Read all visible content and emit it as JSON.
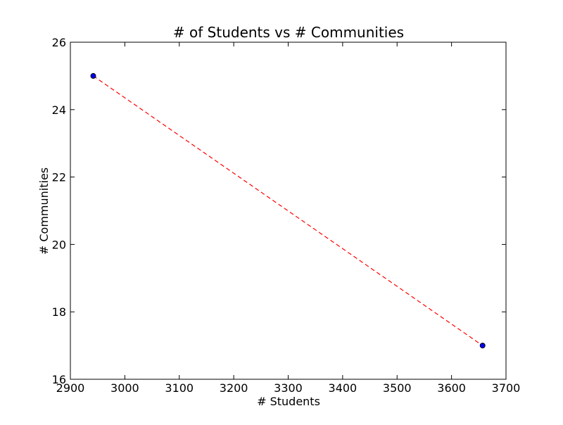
{
  "chart_data": {
    "type": "scatter",
    "title": "# of Students vs # Communities",
    "xlabel": "# Students",
    "ylabel": "# Communities",
    "xlim": [
      2900,
      3700
    ],
    "ylim": [
      16,
      26
    ],
    "xticks": [
      2900,
      3000,
      3100,
      3200,
      3300,
      3400,
      3500,
      3600,
      3700
    ],
    "yticks": [
      16,
      18,
      20,
      22,
      24,
      26
    ],
    "grid": false,
    "series": [
      {
        "type": "scatter",
        "color": "#0000ff",
        "edge_color": "#000000",
        "points": [
          {
            "x": 2942,
            "y": 25
          },
          {
            "x": 3657,
            "y": 17
          }
        ]
      },
      {
        "type": "line",
        "style": "dashed",
        "color": "#ff0000",
        "points": [
          {
            "x": 2942,
            "y": 25
          },
          {
            "x": 3657,
            "y": 17
          }
        ]
      }
    ]
  }
}
